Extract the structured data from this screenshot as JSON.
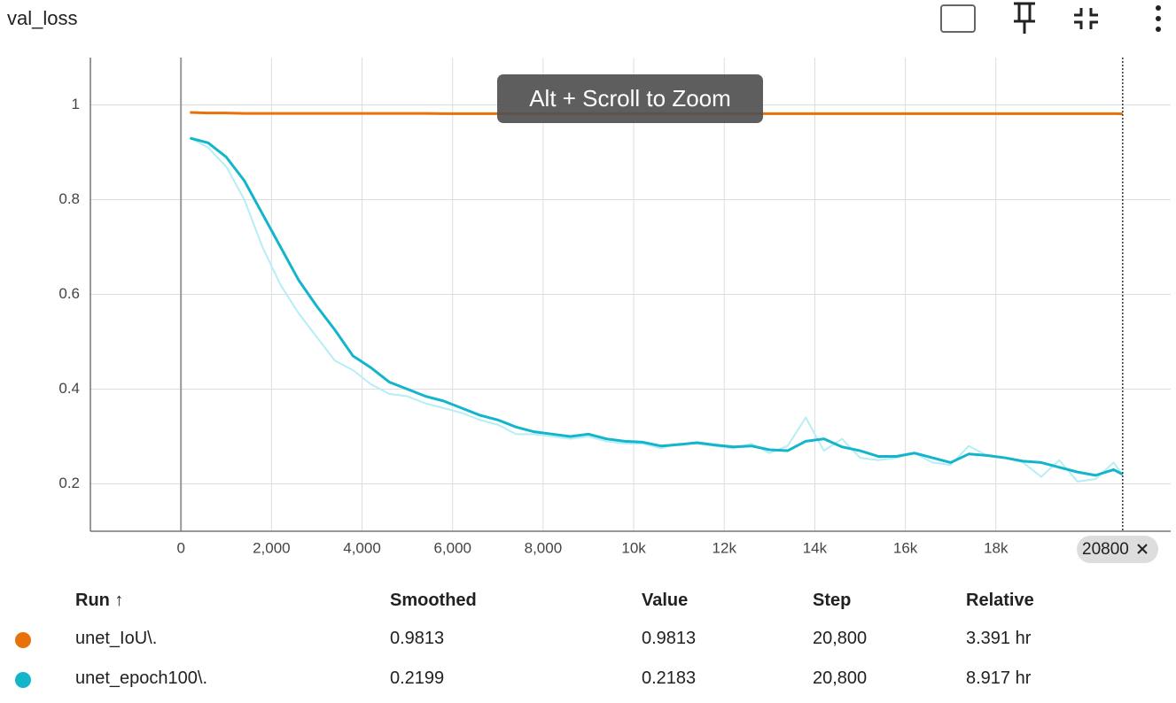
{
  "chart_data": {
    "type": "line",
    "title": "val_loss",
    "zoom_hint": "Alt + Scroll to Zoom",
    "hover_step": 20800,
    "x": [
      200,
      600,
      1000,
      1400,
      1800,
      2200,
      2600,
      3000,
      3400,
      3800,
      4200,
      4600,
      5000,
      5400,
      5800,
      6200,
      6600,
      7000,
      7400,
      7800,
      8200,
      8600,
      9000,
      9400,
      9800,
      10200,
      10600,
      11000,
      11400,
      11800,
      12200,
      12600,
      13000,
      13400,
      13800,
      14200,
      14600,
      15000,
      15400,
      15800,
      16200,
      16600,
      17000,
      17400,
      17800,
      18200,
      18600,
      19000,
      19400,
      19800,
      20200,
      20600,
      20800
    ],
    "series": [
      {
        "color": "#b5eef5",
        "values": [
          0.93,
          0.91,
          0.87,
          0.8,
          0.7,
          0.62,
          0.56,
          0.51,
          0.46,
          0.44,
          0.41,
          0.39,
          0.385,
          0.37,
          0.36,
          0.35,
          0.335,
          0.325,
          0.305,
          0.305,
          0.3,
          0.295,
          0.3,
          0.29,
          0.285,
          0.285,
          0.275,
          0.285,
          0.285,
          0.28,
          0.275,
          0.285,
          0.265,
          0.28,
          0.34,
          0.27,
          0.295,
          0.255,
          0.25,
          0.255,
          0.265,
          0.245,
          0.24,
          0.28,
          0.26,
          0.255,
          0.245,
          0.215,
          0.25,
          0.205,
          0.21,
          0.245,
          0.2183
        ]
      },
      {
        "name": "unet_IoU\\.",
        "color": "#e8710a",
        "values": [
          0.984,
          0.983,
          0.983,
          0.982,
          0.982,
          0.982,
          0.982,
          0.982,
          0.982,
          0.982,
          0.982,
          0.982,
          0.982,
          0.982,
          0.9815,
          0.9815,
          0.9815,
          0.9815,
          0.9815,
          0.9815,
          0.9815,
          0.9815,
          0.9815,
          0.9815,
          0.9815,
          0.9815,
          0.9815,
          0.9815,
          0.9815,
          0.9815,
          0.9815,
          0.9815,
          0.9815,
          0.9815,
          0.9815,
          0.9815,
          0.9815,
          0.9815,
          0.9815,
          0.9815,
          0.9815,
          0.9815,
          0.9815,
          0.9815,
          0.9815,
          0.9815,
          0.9815,
          0.9815,
          0.9815,
          0.9815,
          0.9815,
          0.9815,
          0.9813
        ]
      },
      {
        "name": "unet_epoch100\\.",
        "color": "#12b5cb",
        "values": [
          0.93,
          0.92,
          0.89,
          0.84,
          0.77,
          0.7,
          0.63,
          0.575,
          0.525,
          0.47,
          0.445,
          0.415,
          0.4,
          0.385,
          0.375,
          0.36,
          0.345,
          0.335,
          0.32,
          0.31,
          0.305,
          0.3,
          0.305,
          0.295,
          0.29,
          0.288,
          0.28,
          0.283,
          0.287,
          0.282,
          0.278,
          0.28,
          0.272,
          0.27,
          0.29,
          0.295,
          0.278,
          0.27,
          0.258,
          0.258,
          0.265,
          0.255,
          0.245,
          0.263,
          0.26,
          0.255,
          0.248,
          0.245,
          0.235,
          0.225,
          0.218,
          0.23,
          0.2199
        ]
      }
    ],
    "xlim": [
      -2000,
      21860
    ],
    "ylim": [
      0.1,
      1.1
    ],
    "xticks": [
      0,
      {
        "value": 2000,
        "label": "2,000"
      },
      {
        "value": 4000,
        "label": "4,000"
      },
      {
        "value": 6000,
        "label": "6,000"
      },
      {
        "value": 8000,
        "label": "8,000"
      },
      {
        "value": 10000,
        "label": "10k"
      },
      {
        "value": 12000,
        "label": "12k"
      },
      {
        "value": 14000,
        "label": "14k"
      },
      {
        "value": 16000,
        "label": "16k"
      },
      {
        "value": 18000,
        "label": "18k"
      }
    ],
    "yticks": [
      0.2,
      0.4,
      0.6,
      0.8,
      1
    ],
    "grid": true
  },
  "table": {
    "columns": [
      "Run ↑",
      "Smoothed",
      "Value",
      "Step",
      "Relative"
    ],
    "rows": [
      [
        "unet_IoU\\.",
        "0.9813",
        "0.9813",
        "20,800",
        "3.391 hr"
      ],
      [
        "unet_epoch100\\.",
        "0.2199",
        "0.2183",
        "20,800",
        "8.917 hr"
      ]
    ]
  }
}
